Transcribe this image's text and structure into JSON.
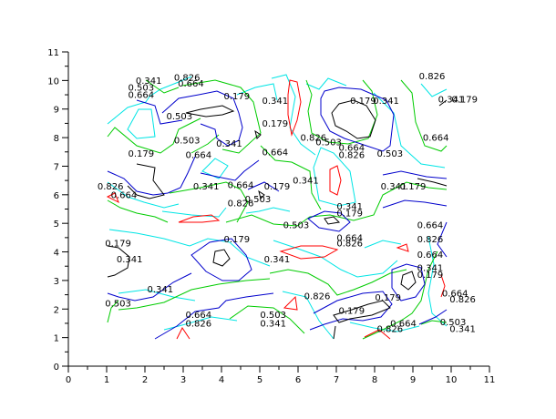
{
  "chart_data": {
    "type": "contour",
    "title": "",
    "xlabel": "",
    "ylabel": "",
    "xlim": [
      0,
      11
    ],
    "ylim": [
      0,
      11
    ],
    "x_ticks": [
      "0",
      "1",
      "2",
      "3",
      "4",
      "5",
      "6",
      "7",
      "8",
      "9",
      "10",
      "11"
    ],
    "y_ticks": [
      "0",
      "1",
      "2",
      "3",
      "4",
      "5",
      "6",
      "7",
      "8",
      "9",
      "10",
      "11"
    ],
    "grid": false,
    "legend": "none",
    "levels": [
      {
        "value": "0.179",
        "color": "#000000"
      },
      {
        "value": "0.341",
        "color": "#0000cc"
      },
      {
        "value": "0.503",
        "color": "#00cc00"
      },
      {
        "value": "0.664",
        "color": "#00e5e5"
      },
      {
        "value": "0.826",
        "color": "#ff0000"
      }
    ],
    "labels": [
      {
        "text": "0.341",
        "x": 2.1,
        "y": 10.0
      },
      {
        "text": "0.826",
        "x": 3.1,
        "y": 10.1
      },
      {
        "text": "0.664",
        "x": 3.2,
        "y": 9.9
      },
      {
        "text": "0.503",
        "x": 1.9,
        "y": 9.75
      },
      {
        "text": "0.664",
        "x": 1.9,
        "y": 9.5
      },
      {
        "text": "0.179",
        "x": 4.4,
        "y": 9.45
      },
      {
        "text": "0.341",
        "x": 5.4,
        "y": 9.3
      },
      {
        "text": "0.503",
        "x": 2.9,
        "y": 8.75
      },
      {
        "text": "0.179",
        "x": 5.4,
        "y": 8.5
      },
      {
        "text": "0.826",
        "x": 6.4,
        "y": 8.0
      },
      {
        "text": "0.503",
        "x": 3.1,
        "y": 7.9
      },
      {
        "text": "0.341",
        "x": 4.2,
        "y": 7.8
      },
      {
        "text": "0.503",
        "x": 6.8,
        "y": 7.85
      },
      {
        "text": "0.664",
        "x": 7.4,
        "y": 7.65
      },
      {
        "text": "0.664",
        "x": 5.4,
        "y": 7.5
      },
      {
        "text": "0.826",
        "x": 7.4,
        "y": 7.4
      },
      {
        "text": "0.503",
        "x": 8.4,
        "y": 7.45
      },
      {
        "text": "0.179",
        "x": 1.9,
        "y": 7.45
      },
      {
        "text": "0.664",
        "x": 3.4,
        "y": 7.4
      },
      {
        "text": "0.826",
        "x": 1.1,
        "y": 6.3
      },
      {
        "text": "0.341",
        "x": 3.6,
        "y": 6.3
      },
      {
        "text": "0.664",
        "x": 4.5,
        "y": 6.35
      },
      {
        "text": "0.179",
        "x": 5.45,
        "y": 6.3
      },
      {
        "text": "0.341",
        "x": 6.2,
        "y": 6.5
      },
      {
        "text": "0.341",
        "x": 8.5,
        "y": 6.3
      },
      {
        "text": "0.179",
        "x": 9.0,
        "y": 6.3
      },
      {
        "text": "0.664",
        "x": 1.45,
        "y": 6.0
      },
      {
        "text": "0.503",
        "x": 4.95,
        "y": 5.85
      },
      {
        "text": "0.826",
        "x": 4.5,
        "y": 5.7
      },
      {
        "text": "0.341",
        "x": 7.35,
        "y": 5.6
      },
      {
        "text": "0.179",
        "x": 7.35,
        "y": 5.35
      },
      {
        "text": "0.503",
        "x": 5.95,
        "y": 4.95
      },
      {
        "text": "0.664",
        "x": 9.45,
        "y": 4.95
      },
      {
        "text": "0.664",
        "x": 7.35,
        "y": 4.5
      },
      {
        "text": "0.826",
        "x": 7.35,
        "y": 4.3
      },
      {
        "text": "0.826",
        "x": 9.45,
        "y": 4.45
      },
      {
        "text": "0.179",
        "x": 4.4,
        "y": 4.45
      },
      {
        "text": "0.179",
        "x": 1.3,
        "y": 4.3
      },
      {
        "text": "0.664",
        "x": 9.45,
        "y": 3.9
      },
      {
        "text": "0.341",
        "x": 5.45,
        "y": 3.75
      },
      {
        "text": "0.341",
        "x": 1.6,
        "y": 3.75
      },
      {
        "text": "0.341",
        "x": 9.45,
        "y": 3.45
      },
      {
        "text": "0.179",
        "x": 9.45,
        "y": 3.2
      },
      {
        "text": "0.341",
        "x": 2.4,
        "y": 2.7
      },
      {
        "text": "0.664",
        "x": 10.1,
        "y": 2.55
      },
      {
        "text": "0.826",
        "x": 10.3,
        "y": 2.35
      },
      {
        "text": "0.826",
        "x": 6.5,
        "y": 2.45
      },
      {
        "text": "0.179",
        "x": 8.35,
        "y": 2.4
      },
      {
        "text": "0.503",
        "x": 1.3,
        "y": 2.2
      },
      {
        "text": "0.179",
        "x": 7.4,
        "y": 1.95
      },
      {
        "text": "0.664",
        "x": 3.4,
        "y": 1.8
      },
      {
        "text": "0.503",
        "x": 5.35,
        "y": 1.8
      },
      {
        "text": "0.826",
        "x": 3.4,
        "y": 1.5
      },
      {
        "text": "0.341",
        "x": 5.35,
        "y": 1.5
      },
      {
        "text": "0.664",
        "x": 8.75,
        "y": 1.5
      },
      {
        "text": "0.503",
        "x": 10.05,
        "y": 1.55
      },
      {
        "text": "0.826",
        "x": 8.4,
        "y": 1.3
      },
      {
        "text": "0.341",
        "x": 10.3,
        "y": 1.3
      },
      {
        "text": "0.826",
        "x": 9.5,
        "y": 10.15
      },
      {
        "text": "0.179",
        "x": 7.7,
        "y": 9.3
      },
      {
        "text": "0.341",
        "x": 8.3,
        "y": 9.3
      },
      {
        "text": "0.341",
        "x": 10.0,
        "y": 9.35
      },
      {
        "text": "0.179",
        "x": 10.35,
        "y": 9.35
      },
      {
        "text": "0.664",
        "x": 9.6,
        "y": 8.0
      }
    ]
  }
}
